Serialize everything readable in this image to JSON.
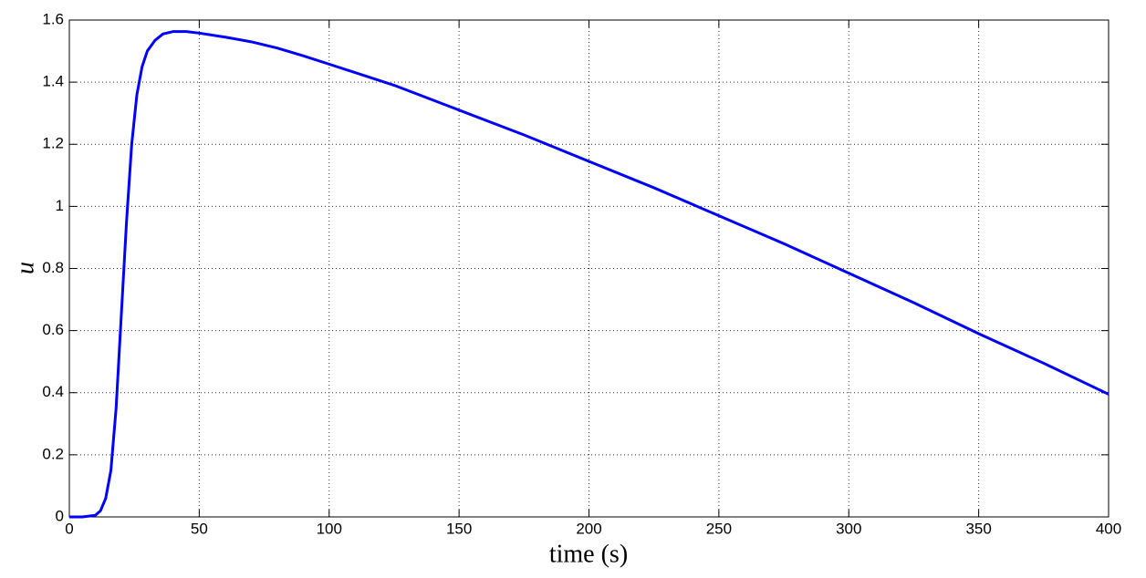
{
  "chart_data": {
    "type": "line",
    "xlabel": "time (s)",
    "ylabel": "u",
    "x": [
      0,
      5,
      10,
      12,
      14,
      16,
      18,
      20,
      22,
      24,
      26,
      28,
      30,
      33,
      36,
      40,
      45,
      50,
      60,
      70,
      80,
      90,
      100,
      125,
      150,
      175,
      200,
      225,
      250,
      275,
      300,
      325,
      350,
      375,
      400
    ],
    "values": [
      0,
      0,
      0.005,
      0.02,
      0.06,
      0.15,
      0.35,
      0.65,
      0.95,
      1.2,
      1.36,
      1.45,
      1.5,
      1.535,
      1.555,
      1.563,
      1.563,
      1.558,
      1.545,
      1.53,
      1.51,
      1.485,
      1.458,
      1.39,
      1.31,
      1.23,
      1.145,
      1.06,
      0.97,
      0.88,
      0.785,
      0.69,
      0.59,
      0.495,
      0.395
    ],
    "color": "#0000ff",
    "xlim": [
      0,
      400
    ],
    "xticks": [
      0,
      50,
      100,
      150,
      200,
      250,
      300,
      350,
      400
    ],
    "ylim": [
      0,
      1.6
    ],
    "yticks": [
      0,
      0.2,
      0.4,
      0.6,
      0.8,
      1,
      1.2,
      1.4,
      1.6
    ],
    "grid": true
  }
}
